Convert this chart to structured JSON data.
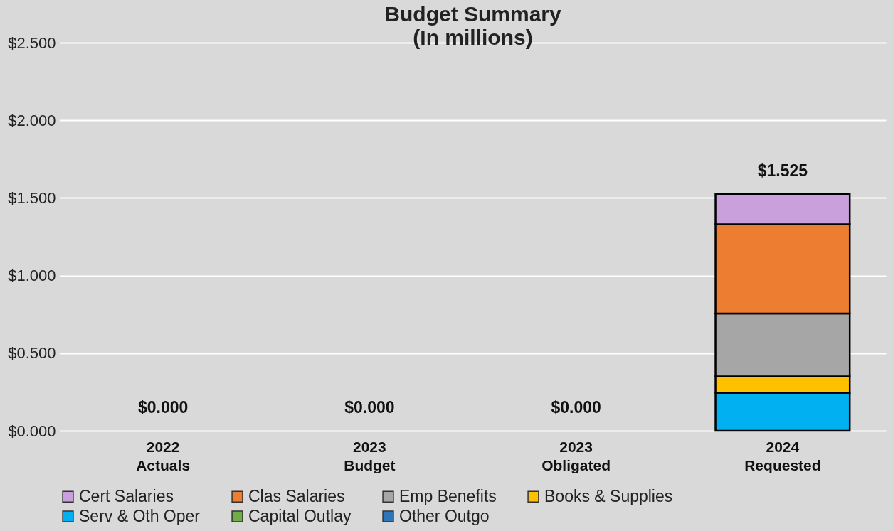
{
  "chart_data": {
    "type": "bar",
    "title": "Budget Summary",
    "subtitle": "(In millions)",
    "categories": [
      "2022\nActuals",
      "2023\nBudget",
      "2023\nObligated",
      "2024\nRequested"
    ],
    "stacked": true,
    "series": [
      {
        "name": "Other Outgo",
        "color": "#2e75b6",
        "values": [
          0,
          0,
          0,
          0
        ]
      },
      {
        "name": "Capital Outlay",
        "color": "#70ad47",
        "values": [
          0,
          0,
          0,
          0
        ]
      },
      {
        "name": "Serv & Oth Oper",
        "color": "#00b0f0",
        "values": [
          0,
          0,
          0,
          0.245
        ]
      },
      {
        "name": "Books & Supplies",
        "color": "#ffc000",
        "values": [
          0,
          0,
          0,
          0.105
        ]
      },
      {
        "name": "Emp Benefits",
        "color": "#a6a6a6",
        "values": [
          0,
          0,
          0,
          0.405
        ]
      },
      {
        "name": "Clas Salaries",
        "color": "#ed7d31",
        "values": [
          0,
          0,
          0,
          0.575
        ]
      },
      {
        "name": "Cert Salaries",
        "color": "#c9a0dc",
        "values": [
          0,
          0,
          0,
          0.195
        ]
      }
    ],
    "totals": [
      "$0.000",
      "$0.000",
      "$0.000",
      "$1.525"
    ],
    "ylim": [
      0,
      2.5
    ],
    "yticks": [
      {
        "value": 0,
        "label": "$0.000"
      },
      {
        "value": 0.5,
        "label": "$0.500"
      },
      {
        "value": 1,
        "label": "$1.000"
      },
      {
        "value": 1.5,
        "label": "$1.500"
      },
      {
        "value": 2,
        "label": "$2.000"
      },
      {
        "value": 2.5,
        "label": "$2.500"
      }
    ],
    "grid": "y",
    "legend": "bottom"
  }
}
